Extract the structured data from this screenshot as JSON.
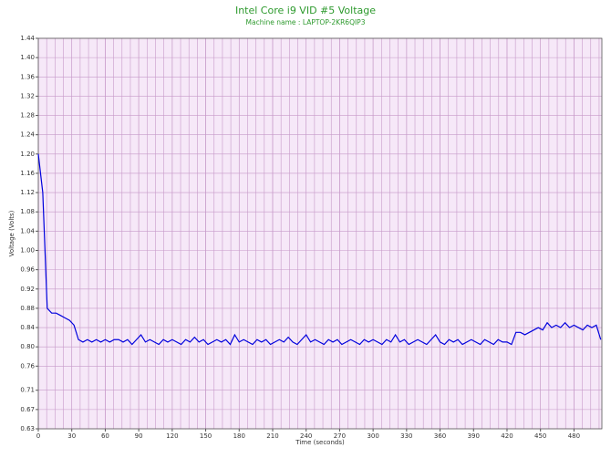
{
  "chart_data": {
    "type": "line",
    "title": "Intel Core i9 VID #5 Voltage",
    "subtitle": "Machine name : LAPTOP-2KR6QIP3",
    "x_label": "Time (seconds)",
    "y_label": "Voltage (Volts)",
    "x": [
      0,
      4,
      8,
      12,
      16,
      20,
      24,
      28,
      32,
      36,
      40,
      44,
      48,
      52,
      56,
      60,
      64,
      68,
      72,
      76,
      80,
      84,
      88,
      92,
      96,
      100,
      104,
      108,
      112,
      116,
      120,
      124,
      128,
      132,
      136,
      140,
      144,
      148,
      152,
      156,
      160,
      164,
      168,
      172,
      176,
      180,
      184,
      188,
      192,
      196,
      200,
      204,
      208,
      212,
      216,
      220,
      224,
      228,
      232,
      236,
      240,
      244,
      248,
      252,
      256,
      260,
      264,
      268,
      272,
      276,
      280,
      284,
      288,
      292,
      296,
      300,
      304,
      308,
      312,
      316,
      320,
      324,
      328,
      332,
      336,
      340,
      344,
      348,
      352,
      356,
      360,
      364,
      368,
      372,
      376,
      380,
      384,
      388,
      392,
      396,
      400,
      404,
      408,
      412,
      416,
      420,
      424,
      428,
      432,
      436,
      440,
      444,
      448,
      452,
      456,
      460,
      464,
      468,
      472,
      476,
      480,
      484,
      488,
      492,
      496,
      500,
      504
    ],
    "series": [
      {
        "color": "#0000dd",
        "values": [
          1.2,
          1.12,
          0.88,
          0.87,
          0.87,
          0.865,
          0.86,
          0.855,
          0.845,
          0.815,
          0.81,
          0.815,
          0.81,
          0.815,
          0.81,
          0.815,
          0.81,
          0.815,
          0.815,
          0.81,
          0.815,
          0.805,
          0.815,
          0.825,
          0.81,
          0.815,
          0.81,
          0.805,
          0.815,
          0.81,
          0.815,
          0.81,
          0.805,
          0.815,
          0.81,
          0.82,
          0.81,
          0.815,
          0.805,
          0.81,
          0.815,
          0.81,
          0.815,
          0.805,
          0.825,
          0.81,
          0.815,
          0.81,
          0.805,
          0.815,
          0.81,
          0.815,
          0.805,
          0.81,
          0.815,
          0.81,
          0.82,
          0.81,
          0.805,
          0.815,
          0.825,
          0.81,
          0.815,
          0.81,
          0.805,
          0.815,
          0.81,
          0.815,
          0.805,
          0.81,
          0.815,
          0.81,
          0.805,
          0.815,
          0.81,
          0.815,
          0.81,
          0.805,
          0.815,
          0.81,
          0.825,
          0.81,
          0.815,
          0.805,
          0.81,
          0.815,
          0.81,
          0.805,
          0.815,
          0.825,
          0.81,
          0.805,
          0.815,
          0.81,
          0.815,
          0.805,
          0.81,
          0.815,
          0.81,
          0.805,
          0.815,
          0.81,
          0.805,
          0.815,
          0.81,
          0.81,
          0.805,
          0.83,
          0.83,
          0.825,
          0.83,
          0.835,
          0.84,
          0.835,
          0.85,
          0.84,
          0.845,
          0.84,
          0.85,
          0.84,
          0.845,
          0.84,
          0.835,
          0.845,
          0.84,
          0.845,
          0.815
        ]
      }
    ],
    "xlim": [
      0,
      505
    ],
    "ylim": [
      0.63,
      1.44
    ],
    "xticks": [
      0,
      30,
      60,
      90,
      120,
      150,
      180,
      210,
      240,
      270,
      300,
      330,
      360,
      390,
      420,
      450,
      480
    ],
    "yticks": [
      {
        "value": 0.63,
        "label": "0.63"
      },
      {
        "value": 0.67,
        "label": "0.67"
      },
      {
        "value": 0.71,
        "label": "0.71"
      },
      {
        "value": 0.76,
        "label": "0.76"
      },
      {
        "value": 0.8,
        "label": "0.80"
      },
      {
        "value": 0.84,
        "label": "0.84"
      },
      {
        "value": 0.88,
        "label": "0.88"
      },
      {
        "value": 0.92,
        "label": "0.92"
      },
      {
        "value": 0.96,
        "label": "0.96"
      },
      {
        "value": 1.0,
        "label": "1.00"
      },
      {
        "value": 1.04,
        "label": "1.04"
      },
      {
        "value": 1.08,
        "label": "1.08"
      },
      {
        "value": 1.12,
        "label": "1.12"
      },
      {
        "value": 1.16,
        "label": "1.16"
      },
      {
        "value": 1.2,
        "label": "1.20"
      },
      {
        "value": 1.24,
        "label": "1.24"
      },
      {
        "value": 1.28,
        "label": "1.28"
      },
      {
        "value": 1.32,
        "label": "1.32"
      },
      {
        "value": 1.36,
        "label": "1.36"
      },
      {
        "value": 1.4,
        "label": "1.40"
      },
      {
        "value": 1.44,
        "label": "1.44"
      }
    ],
    "grid": true,
    "minor_x_grid_per_tick": 4,
    "plot_background": "#f6e8f8",
    "grid_color": "#c79ac9",
    "title_color": "#2e9a2e"
  }
}
